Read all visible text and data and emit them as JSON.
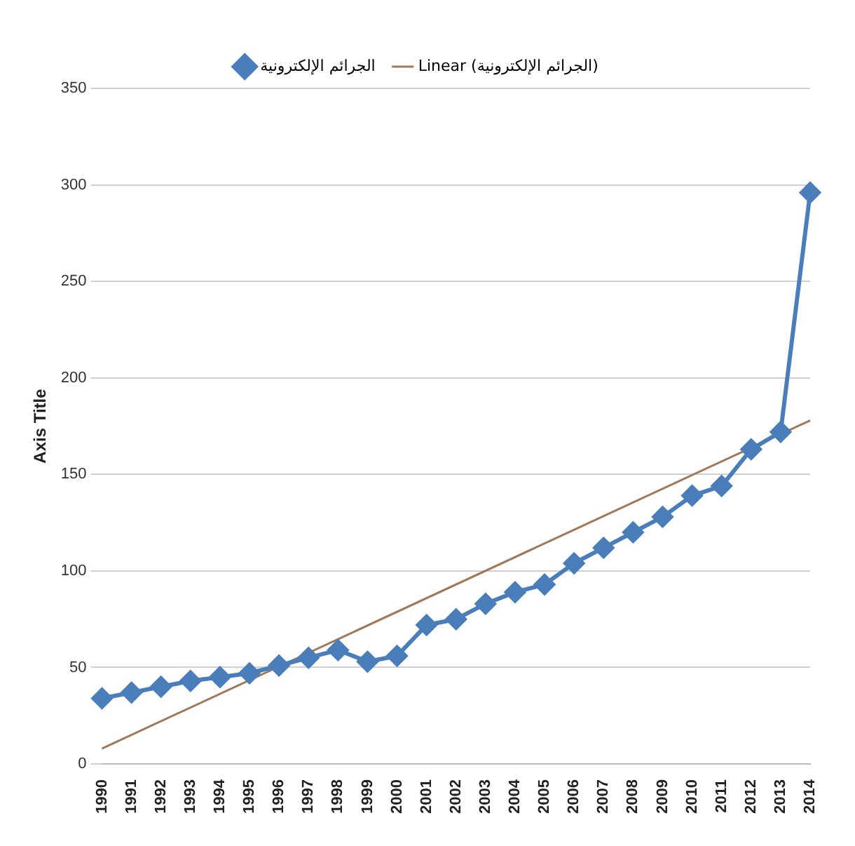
{
  "chart_data": {
    "type": "line",
    "ylabel": "Axis Title",
    "categories": [
      "1990",
      "1991",
      "1992",
      "1993",
      "1994",
      "1995",
      "1996",
      "1997",
      "1998",
      "1999",
      "2000",
      "2001",
      "2002",
      "2003",
      "2004",
      "2005",
      "2006",
      "2007",
      "2008",
      "2009",
      "2010",
      "2011",
      "2012",
      "2013",
      "2014"
    ],
    "series": [
      {
        "name": "الجرائم الإلكترونية",
        "color": "#4a7ebb",
        "marker": "diamond",
        "values": [
          34,
          37,
          40,
          43,
          45,
          47,
          51,
          55,
          59,
          53,
          56,
          72,
          75,
          83,
          89,
          93,
          104,
          112,
          120,
          128,
          139,
          144,
          163,
          172,
          296
        ]
      },
      {
        "name": "Linear (الجرائم الإلكترونية)",
        "color": "#a0785a",
        "marker": "none",
        "values": [
          8,
          null,
          null,
          null,
          null,
          null,
          null,
          null,
          null,
          null,
          null,
          null,
          null,
          null,
          null,
          null,
          null,
          null,
          null,
          null,
          null,
          null,
          null,
          null,
          178
        ]
      }
    ],
    "ylim": [
      0,
      350
    ],
    "yticks": [
      0,
      50,
      100,
      150,
      200,
      250,
      300,
      350
    ],
    "grid": "y",
    "legend": "top"
  }
}
